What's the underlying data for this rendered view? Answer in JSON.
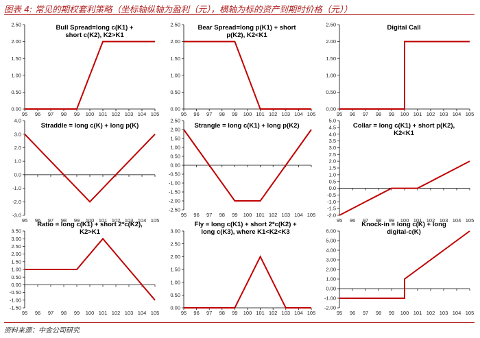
{
  "figure_title": "图表 4: 常见的期权套利策略（坐标轴纵轴为盈利（元），横轴为标的资产到期时价格（元））",
  "source": "资料来源：中金公司研究",
  "colors": {
    "line": "#c00000",
    "axis": "#000000",
    "accent": "#b22222"
  },
  "chart_data": [
    {
      "type": "line",
      "title": "Bull Spread=long c(K1) + short c(K2), K2>K1",
      "x": [
        95,
        96,
        97,
        98,
        99,
        100,
        101,
        102,
        103,
        104,
        105
      ],
      "x_tick_labels": [
        "95",
        "96",
        "97",
        "98",
        "99",
        "100",
        "101",
        "102",
        "103",
        "104",
        "105"
      ],
      "y_tick_labels": [
        "0.00",
        "0.50",
        "1.00",
        "1.50",
        "2.00",
        "2.50"
      ],
      "ylim": [
        0,
        2.5
      ],
      "series": [
        {
          "values": [
            0,
            0,
            0,
            0,
            0,
            1,
            2,
            2,
            2,
            2,
            2
          ]
        }
      ]
    },
    {
      "type": "line",
      "title": "Bear Spread=long p(K1) + short p(K2), K2<K1",
      "x": [
        95,
        96,
        97,
        98,
        99,
        100,
        101,
        102,
        103,
        104,
        105
      ],
      "x_tick_labels": [
        "95",
        "96",
        "97",
        "98",
        "99",
        "100",
        "101",
        "102",
        "103",
        "104",
        "105"
      ],
      "y_tick_labels": [
        "0.00",
        "0.50",
        "1.00",
        "1.50",
        "2.00",
        "2.50"
      ],
      "ylim": [
        0,
        2.5
      ],
      "series": [
        {
          "values": [
            2,
            2,
            2,
            2,
            2,
            1,
            0,
            0,
            0,
            0,
            0
          ]
        }
      ]
    },
    {
      "type": "line",
      "title": "Digital Call",
      "x": [
        95,
        96,
        97,
        98,
        99,
        100,
        100,
        101,
        102,
        103,
        104,
        105
      ],
      "x_tick_labels": [
        "95",
        "96",
        "97",
        "98",
        "99",
        "100",
        "101",
        "102",
        "103",
        "104",
        "105"
      ],
      "y_tick_labels": [
        "0.00",
        "0.50",
        "1.00",
        "1.50",
        "2.00",
        "2.50"
      ],
      "ylim": [
        0,
        2.5
      ],
      "series": [
        {
          "values": [
            0,
            0,
            0,
            0,
            0,
            0,
            2,
            2,
            2,
            2,
            2,
            2
          ]
        }
      ]
    },
    {
      "type": "line",
      "title": "Straddle = long c(K) + long p(K)",
      "x": [
        95,
        96,
        97,
        98,
        99,
        100,
        101,
        102,
        103,
        104,
        105
      ],
      "x_tick_labels": [
        "95",
        "96",
        "97",
        "98",
        "99",
        "100",
        "101",
        "102",
        "103",
        "104",
        "105"
      ],
      "y_tick_labels": [
        "-3.0",
        "-2.0",
        "-1.0",
        "0.0",
        "1.0",
        "2.0",
        "3.0",
        "4.0"
      ],
      "ylim": [
        -3,
        4
      ],
      "series": [
        {
          "values": [
            3,
            2,
            1,
            0,
            -1,
            -2,
            -1,
            0,
            1,
            2,
            3
          ]
        }
      ]
    },
    {
      "type": "line",
      "title": "Strangle = long c(K1) + long p(K2)",
      "x": [
        95,
        96,
        97,
        98,
        99,
        100,
        101,
        102,
        103,
        104,
        105
      ],
      "x_tick_labels": [
        "95",
        "96",
        "97",
        "98",
        "99",
        "100",
        "101",
        "102",
        "103",
        "104",
        "105"
      ],
      "y_tick_labels": [
        "-2.50",
        "-2.00",
        "-1.50",
        "-1.00",
        "-0.50",
        "0.00",
        "0.50",
        "1.00",
        "1.50",
        "2.00",
        "2.50"
      ],
      "ylim": [
        -2.5,
        2.5
      ],
      "series": [
        {
          "values": [
            2,
            1,
            0,
            -1,
            -2,
            -2,
            -2,
            -1,
            0,
            1,
            2
          ]
        }
      ]
    },
    {
      "type": "line",
      "title": "Collar = long c(K1) + short p(K2), K2<K1",
      "x": [
        95,
        96,
        97,
        98,
        99,
        100,
        101,
        102,
        103,
        104,
        105
      ],
      "x_tick_labels": [
        "95",
        "96",
        "97",
        "98",
        "99",
        "100",
        "101",
        "102",
        "103",
        "104",
        "105"
      ],
      "y_tick_labels": [
        "-2.0",
        "-1.5",
        "-1.0",
        "-0.5",
        "0.0",
        "0.5",
        "1.0",
        "1.5",
        "2.0",
        "2.5",
        "3.0",
        "3.5",
        "4.0",
        "4.5",
        "5.0"
      ],
      "ylim": [
        -2,
        5
      ],
      "series": [
        {
          "values": [
            -2,
            -1.5,
            -1,
            -0.5,
            0,
            0,
            0,
            0.5,
            1,
            1.5,
            2
          ]
        }
      ]
    },
    {
      "type": "line",
      "title": "Ratio = long c(K1) + short 2*c(K2), K2>K1",
      "x": [
        95,
        96,
        97,
        98,
        99,
        100,
        101,
        102,
        103,
        104,
        105
      ],
      "x_tick_labels": [
        "95",
        "96",
        "97",
        "98",
        "99",
        "100",
        "101",
        "102",
        "103",
        "104",
        "105"
      ],
      "y_tick_labels": [
        "-1.50",
        "-1.00",
        "-0.50",
        "0.00",
        "0.50",
        "1.00",
        "1.50",
        "2.00",
        "2.50",
        "3.00",
        "3.50"
      ],
      "ylim": [
        -1.5,
        3.5
      ],
      "series": [
        {
          "values": [
            1,
            1,
            1,
            1,
            1,
            2,
            3,
            2,
            1,
            0,
            -1
          ]
        }
      ]
    },
    {
      "type": "line",
      "title": "Fly = long c(K1) + short 2*c(K2) + long c(K3), where K1<K2<K3",
      "x": [
        95,
        96,
        97,
        98,
        99,
        100,
        101,
        102,
        103,
        104,
        105
      ],
      "x_tick_labels": [
        "95",
        "96",
        "97",
        "98",
        "99",
        "100",
        "101",
        "102",
        "103",
        "104",
        "105"
      ],
      "y_tick_labels": [
        "0.00",
        "0.50",
        "1.00",
        "1.50",
        "2.00",
        "2.50",
        "3.00"
      ],
      "ylim": [
        0,
        3
      ],
      "series": [
        {
          "values": [
            0,
            0,
            0,
            0,
            0,
            1,
            2,
            1,
            0,
            0,
            0
          ]
        }
      ]
    },
    {
      "type": "line",
      "title": "Knock-in = long c(K) + long digital-c(K)",
      "x": [
        95,
        96,
        97,
        98,
        99,
        100,
        100,
        101,
        102,
        103,
        104,
        105
      ],
      "x_tick_labels": [
        "95",
        "96",
        "97",
        "98",
        "99",
        "100",
        "101",
        "102",
        "103",
        "104",
        "105"
      ],
      "y_tick_labels": [
        "-2.00",
        "-1.00",
        "0.00",
        "1.00",
        "2.00",
        "3.00",
        "4.00",
        "5.00",
        "6.00"
      ],
      "ylim": [
        -2,
        6
      ],
      "series": [
        {
          "values": [
            -1,
            -1,
            -1,
            -1,
            -1,
            -1,
            1,
            2,
            3,
            4,
            5,
            6
          ]
        }
      ]
    }
  ]
}
